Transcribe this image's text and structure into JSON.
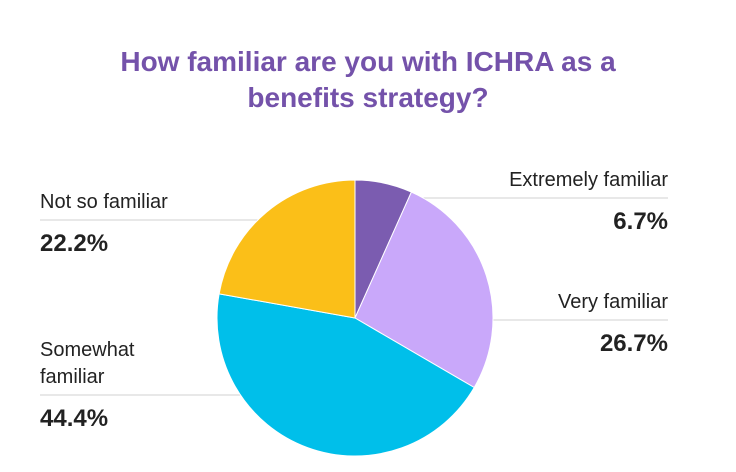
{
  "chart_data": {
    "type": "pie",
    "title": "How familiar are you with ICHRA as a benefits strategy?",
    "categories": [
      "Extremely familiar",
      "Very familiar",
      "Somewhat familiar",
      "Not so familiar"
    ],
    "values": [
      6.7,
      26.7,
      44.4,
      22.2
    ],
    "value_labels": [
      "6.7%",
      "26.7%",
      "44.4%",
      "22.2%"
    ],
    "colors": [
      "#7b5cb0",
      "#c9a8fa",
      "#00bfea",
      "#fbbf18"
    ]
  }
}
